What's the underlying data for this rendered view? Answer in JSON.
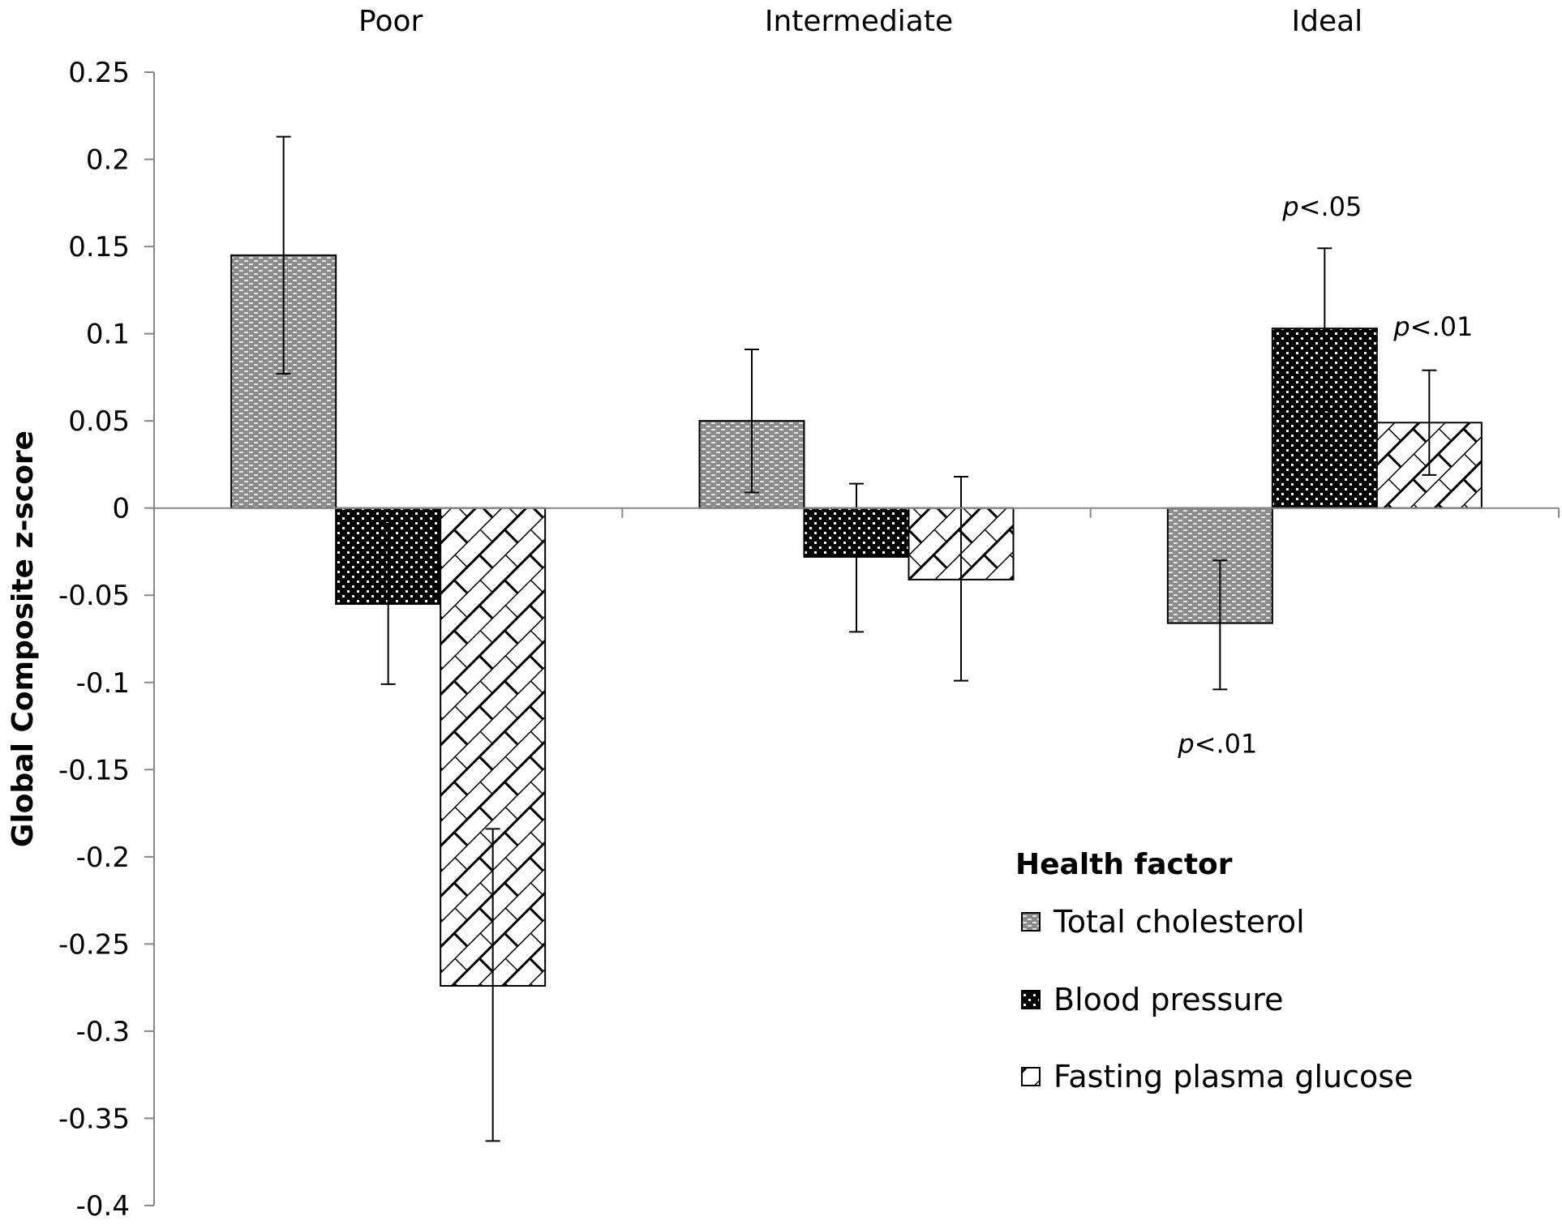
{
  "chart_data": {
    "type": "bar",
    "categories": [
      "Poor",
      "Intermediate",
      "Ideal"
    ],
    "ylabel": "Global Composite z-score",
    "xlabel": "",
    "ylim": [
      -0.4,
      0.25
    ],
    "yticks": [
      0.25,
      0.2,
      0.15,
      0.1,
      0.05,
      0,
      -0.05,
      -0.1,
      -0.15,
      -0.2,
      -0.25,
      -0.3,
      -0.35,
      -0.4
    ],
    "ytick_labels": [
      "0.25",
      "0.2",
      "0.15",
      "0.1",
      "0.05",
      "0",
      "-0.05",
      "-0.1",
      "-0.15",
      "-0.2",
      "-0.25",
      "-0.3",
      "-0.35",
      "-0.4"
    ],
    "legend_title": "Health factor",
    "legend_position": "bottom-right",
    "grid": false,
    "series": [
      {
        "name": "Total cholesterol",
        "pattern": "gray-dash",
        "values": [
          0.145,
          0.05,
          -0.066
        ],
        "err_low": [
          0.077,
          0.009,
          -0.104
        ],
        "err_high": [
          0.213,
          0.091,
          -0.03
        ]
      },
      {
        "name": "Blood pressure",
        "pattern": "black-dots",
        "values": [
          -0.055,
          -0.028,
          0.103
        ],
        "err_low": [
          -0.101,
          -0.071,
          0.056
        ],
        "err_high": [
          -0.009,
          0.014,
          0.149
        ]
      },
      {
        "name": "Fasting plasma glucose",
        "pattern": "white-brick",
        "values": [
          -0.274,
          -0.041,
          0.049
        ],
        "err_low": [
          -0.363,
          -0.099,
          0.019
        ],
        "err_high": [
          -0.184,
          0.018,
          0.079
        ]
      }
    ],
    "annotations": [
      {
        "text": "p<.05",
        "category": "Ideal",
        "series": "Blood pressure",
        "position": "above"
      },
      {
        "text": "p<.01",
        "category": "Ideal",
        "series": "Fasting plasma glucose",
        "position": "above"
      },
      {
        "text": "p<.01",
        "category": "Ideal",
        "series": "Total cholesterol",
        "position": "below"
      }
    ],
    "colors": {
      "cholesterol_fill": "#8c8c8c",
      "pressure_fill": "#000000",
      "glucose_fill": "#ffffff",
      "stroke": "#000000"
    }
  }
}
